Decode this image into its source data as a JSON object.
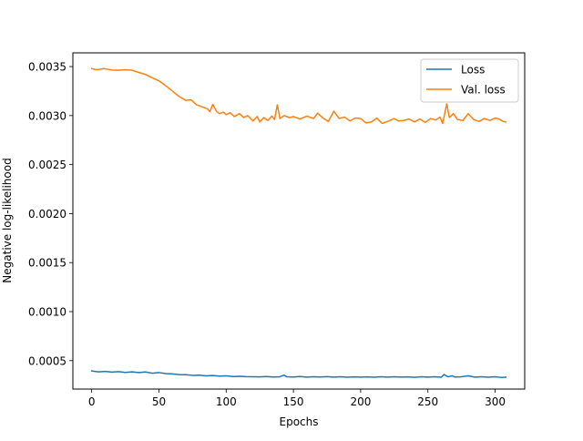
{
  "chart_data": {
    "type": "line",
    "title": "",
    "xlabel": "Epochs",
    "ylabel": "Negative log-likelihood",
    "xlim": [
      -14,
      322
    ],
    "ylim": [
      0.00021,
      0.00364
    ],
    "xticks": [
      0,
      50,
      100,
      150,
      200,
      250,
      300
    ],
    "xtick_labels": [
      "0",
      "50",
      "100",
      "150",
      "200",
      "250",
      "300"
    ],
    "yticks": [
      0.0005,
      0.001,
      0.0015,
      0.002,
      0.0025,
      0.003,
      0.0035
    ],
    "ytick_labels": [
      "0.0005",
      "0.0010",
      "0.0015",
      "0.0020",
      "0.0025",
      "0.0030",
      "0.0035"
    ],
    "grid": false,
    "legend_position": "top-right",
    "series": [
      {
        "name": "Loss",
        "color": "#1f77b4",
        "x": [
          0,
          5,
          10,
          15,
          20,
          25,
          30,
          35,
          40,
          45,
          50,
          55,
          60,
          65,
          70,
          75,
          80,
          85,
          90,
          95,
          100,
          105,
          110,
          115,
          120,
          125,
          130,
          135,
          140,
          143,
          145,
          150,
          155,
          160,
          165,
          170,
          175,
          180,
          185,
          190,
          195,
          200,
          205,
          210,
          215,
          220,
          225,
          230,
          235,
          240,
          245,
          250,
          255,
          260,
          262,
          265,
          268,
          270,
          275,
          280,
          285,
          290,
          295,
          300,
          305,
          308
        ],
        "y": [
          0.000395,
          0.000385,
          0.00039,
          0.000383,
          0.000388,
          0.00038,
          0.000386,
          0.000378,
          0.000384,
          0.000372,
          0.000378,
          0.000368,
          0.000365,
          0.000358,
          0.000356,
          0.00035,
          0.000352,
          0.000345,
          0.000348,
          0.000342,
          0.000345,
          0.000338,
          0.00034,
          0.000337,
          0.000336,
          0.000334,
          0.000338,
          0.000333,
          0.000336,
          0.000352,
          0.000336,
          0.000333,
          0.000338,
          0.000332,
          0.000336,
          0.000333,
          0.000337,
          0.000332,
          0.000335,
          0.000331,
          0.000334,
          0.000332,
          0.000334,
          0.000331,
          0.000335,
          0.000332,
          0.000336,
          0.000332,
          0.000334,
          0.00033,
          0.000335,
          0.000332,
          0.000336,
          0.000331,
          0.000358,
          0.000335,
          0.000345,
          0.000333,
          0.000336,
          0.000345,
          0.000332,
          0.000336,
          0.000331,
          0.000335,
          0.000328,
          0.000331
        ]
      },
      {
        "name": "Val. loss",
        "color": "#ff7f0e",
        "x": [
          0,
          3,
          6,
          9,
          12,
          15,
          20,
          25,
          30,
          35,
          40,
          45,
          50,
          55,
          60,
          65,
          70,
          74,
          78,
          82,
          86,
          88,
          90,
          93,
          95,
          98,
          100,
          103,
          106,
          110,
          113,
          116,
          120,
          123,
          125,
          128,
          131,
          134,
          136,
          138,
          140,
          143,
          147,
          150,
          155,
          160,
          165,
          168,
          172,
          176,
          180,
          184,
          188,
          192,
          196,
          200,
          204,
          208,
          212,
          216,
          220,
          225,
          228,
          232,
          236,
          240,
          244,
          248,
          252,
          256,
          259,
          261,
          264,
          266,
          269,
          272,
          276,
          280,
          284,
          288,
          292,
          296,
          300,
          303,
          306,
          308
        ],
        "y": [
          0.00348,
          0.003468,
          0.003472,
          0.00348,
          0.003472,
          0.003465,
          0.003462,
          0.003468,
          0.003462,
          0.00344,
          0.00342,
          0.003385,
          0.003355,
          0.003305,
          0.00325,
          0.003195,
          0.003155,
          0.00316,
          0.00311,
          0.00309,
          0.00307,
          0.00304,
          0.003115,
          0.00304,
          0.00302,
          0.003035,
          0.00301,
          0.00303,
          0.00299,
          0.00302,
          0.00298,
          0.003,
          0.002945,
          0.00299,
          0.002935,
          0.00298,
          0.00295,
          0.002995,
          0.00296,
          0.00311,
          0.00297,
          0.003,
          0.00298,
          0.00299,
          0.002965,
          0.002995,
          0.00297,
          0.003025,
          0.002975,
          0.00294,
          0.003045,
          0.00297,
          0.002985,
          0.002945,
          0.002975,
          0.00297,
          0.002925,
          0.002935,
          0.002975,
          0.00292,
          0.00294,
          0.00297,
          0.002945,
          0.00295,
          0.002965,
          0.002935,
          0.002965,
          0.00293,
          0.00297,
          0.002955,
          0.002985,
          0.00292,
          0.00312,
          0.00298,
          0.00302,
          0.00296,
          0.00295,
          0.00302,
          0.00296,
          0.00294,
          0.00297,
          0.00295,
          0.002975,
          0.002965,
          0.00294,
          0.002935
        ]
      }
    ]
  }
}
